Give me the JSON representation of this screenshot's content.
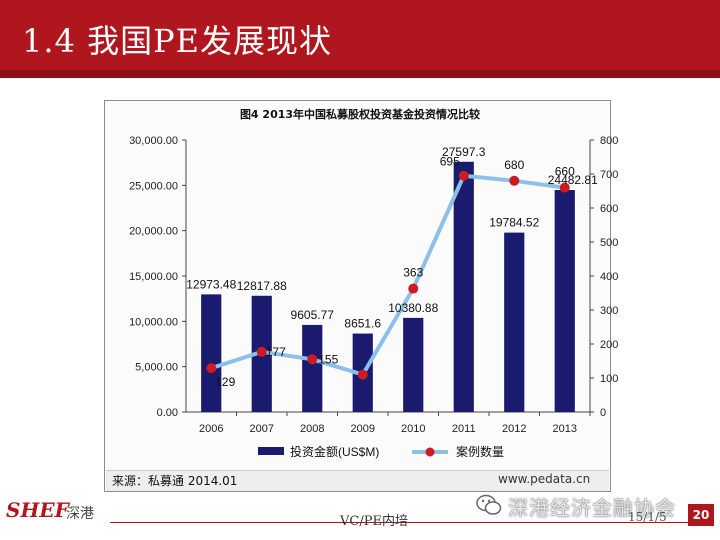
{
  "slide": {
    "title": "1.4 我国PE发展现状",
    "footer_center": "VC/PE内培",
    "footer_date": "15/1/5",
    "page_number": "20",
    "logo_text": "SHEF",
    "logo_cn": "深港",
    "watermark": "深港经济金融协会"
  },
  "chart_header": {
    "title": "图4 2013年中国私募股权投资基金投资情况比较"
  },
  "source": {
    "left": "来源：私募通 2014.01",
    "right": "www.pedata.cn"
  },
  "colors": {
    "bar": "#1a1a6e",
    "line": "#8cc0e8",
    "marker": "#cc1b22",
    "title_bar": "#b0161e"
  },
  "chart_data": {
    "type": "bar",
    "title": "图4 2013年中国私募股权投资基金投资情况比较",
    "categories": [
      "2006",
      "2007",
      "2008",
      "2009",
      "2010",
      "2011",
      "2012",
      "2013"
    ],
    "series": [
      {
        "name": "投资金额(US$M)",
        "type": "bar",
        "axis": "left",
        "values": [
          12973.48,
          12817.88,
          9605.77,
          8651.6,
          10380.88,
          27597.3,
          19784.52,
          24482.81
        ],
        "labels": [
          "12973.48",
          "12817.88",
          "9605.77",
          "8651.6",
          "10380.88",
          "27597.3",
          "19784.52",
          "24482.81"
        ]
      },
      {
        "name": "案例数量",
        "type": "line",
        "axis": "right",
        "values": [
          129,
          177,
          155,
          110,
          363,
          695,
          680,
          660
        ],
        "labels": [
          "129",
          "177",
          "155",
          "",
          "363",
          "695",
          "680",
          "660"
        ]
      }
    ],
    "y_left": {
      "min": 0,
      "max": 30000,
      "ticks": [
        "0.00",
        "5,000.00",
        "10,000.00",
        "15,000.00",
        "20,000.00",
        "25,000.00",
        "30,000.00"
      ]
    },
    "y_right": {
      "min": 0,
      "max": 800,
      "ticks": [
        "0",
        "100",
        "200",
        "300",
        "400",
        "500",
        "600",
        "700",
        "800"
      ]
    },
    "legend_position": "bottom",
    "grid": false
  }
}
